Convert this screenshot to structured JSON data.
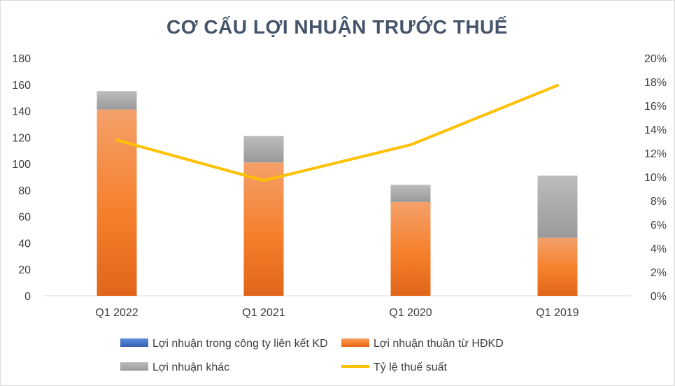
{
  "chart_data": {
    "type": "bar",
    "stacked": true,
    "title": "CƠ CẤU LỢI NHUẬN TRƯỚC THUẾ",
    "categories": [
      "Q1 2022",
      "Q1 2021",
      "Q1 2020",
      "Q1 2019"
    ],
    "y_left": {
      "ticks": [
        "0",
        "20",
        "40",
        "60",
        "80",
        "100",
        "120",
        "140",
        "160",
        "180"
      ],
      "ylim": [
        0,
        180
      ]
    },
    "y_right": {
      "ticks": [
        "0%",
        "2%",
        "4%",
        "6%",
        "8%",
        "10%",
        "12%",
        "14%",
        "16%",
        "18%",
        "20%"
      ],
      "ylim": [
        0,
        20
      ]
    },
    "series": [
      {
        "name": "Lợi nhuận trong công ty liên kết KD",
        "kind": "bar",
        "axis": "left",
        "color": "#4472c4",
        "values": [
          0,
          0,
          0,
          0
        ]
      },
      {
        "name": "Lợi nhuận thuần từ HĐKD",
        "kind": "bar",
        "axis": "left",
        "color": "#ed7d31",
        "values": [
          141,
          101,
          71,
          44
        ]
      },
      {
        "name": "Lợi nhuận khác",
        "kind": "bar",
        "axis": "left",
        "color": "#a5a5a5",
        "values": [
          14,
          20,
          13,
          47
        ]
      },
      {
        "name": "Tỷ lệ thuế suất",
        "kind": "line",
        "axis": "right",
        "color": "#ffc000",
        "values": [
          13.1,
          9.7,
          12.7,
          17.7
        ]
      }
    ],
    "legend_position": "bottom",
    "grid": false
  }
}
